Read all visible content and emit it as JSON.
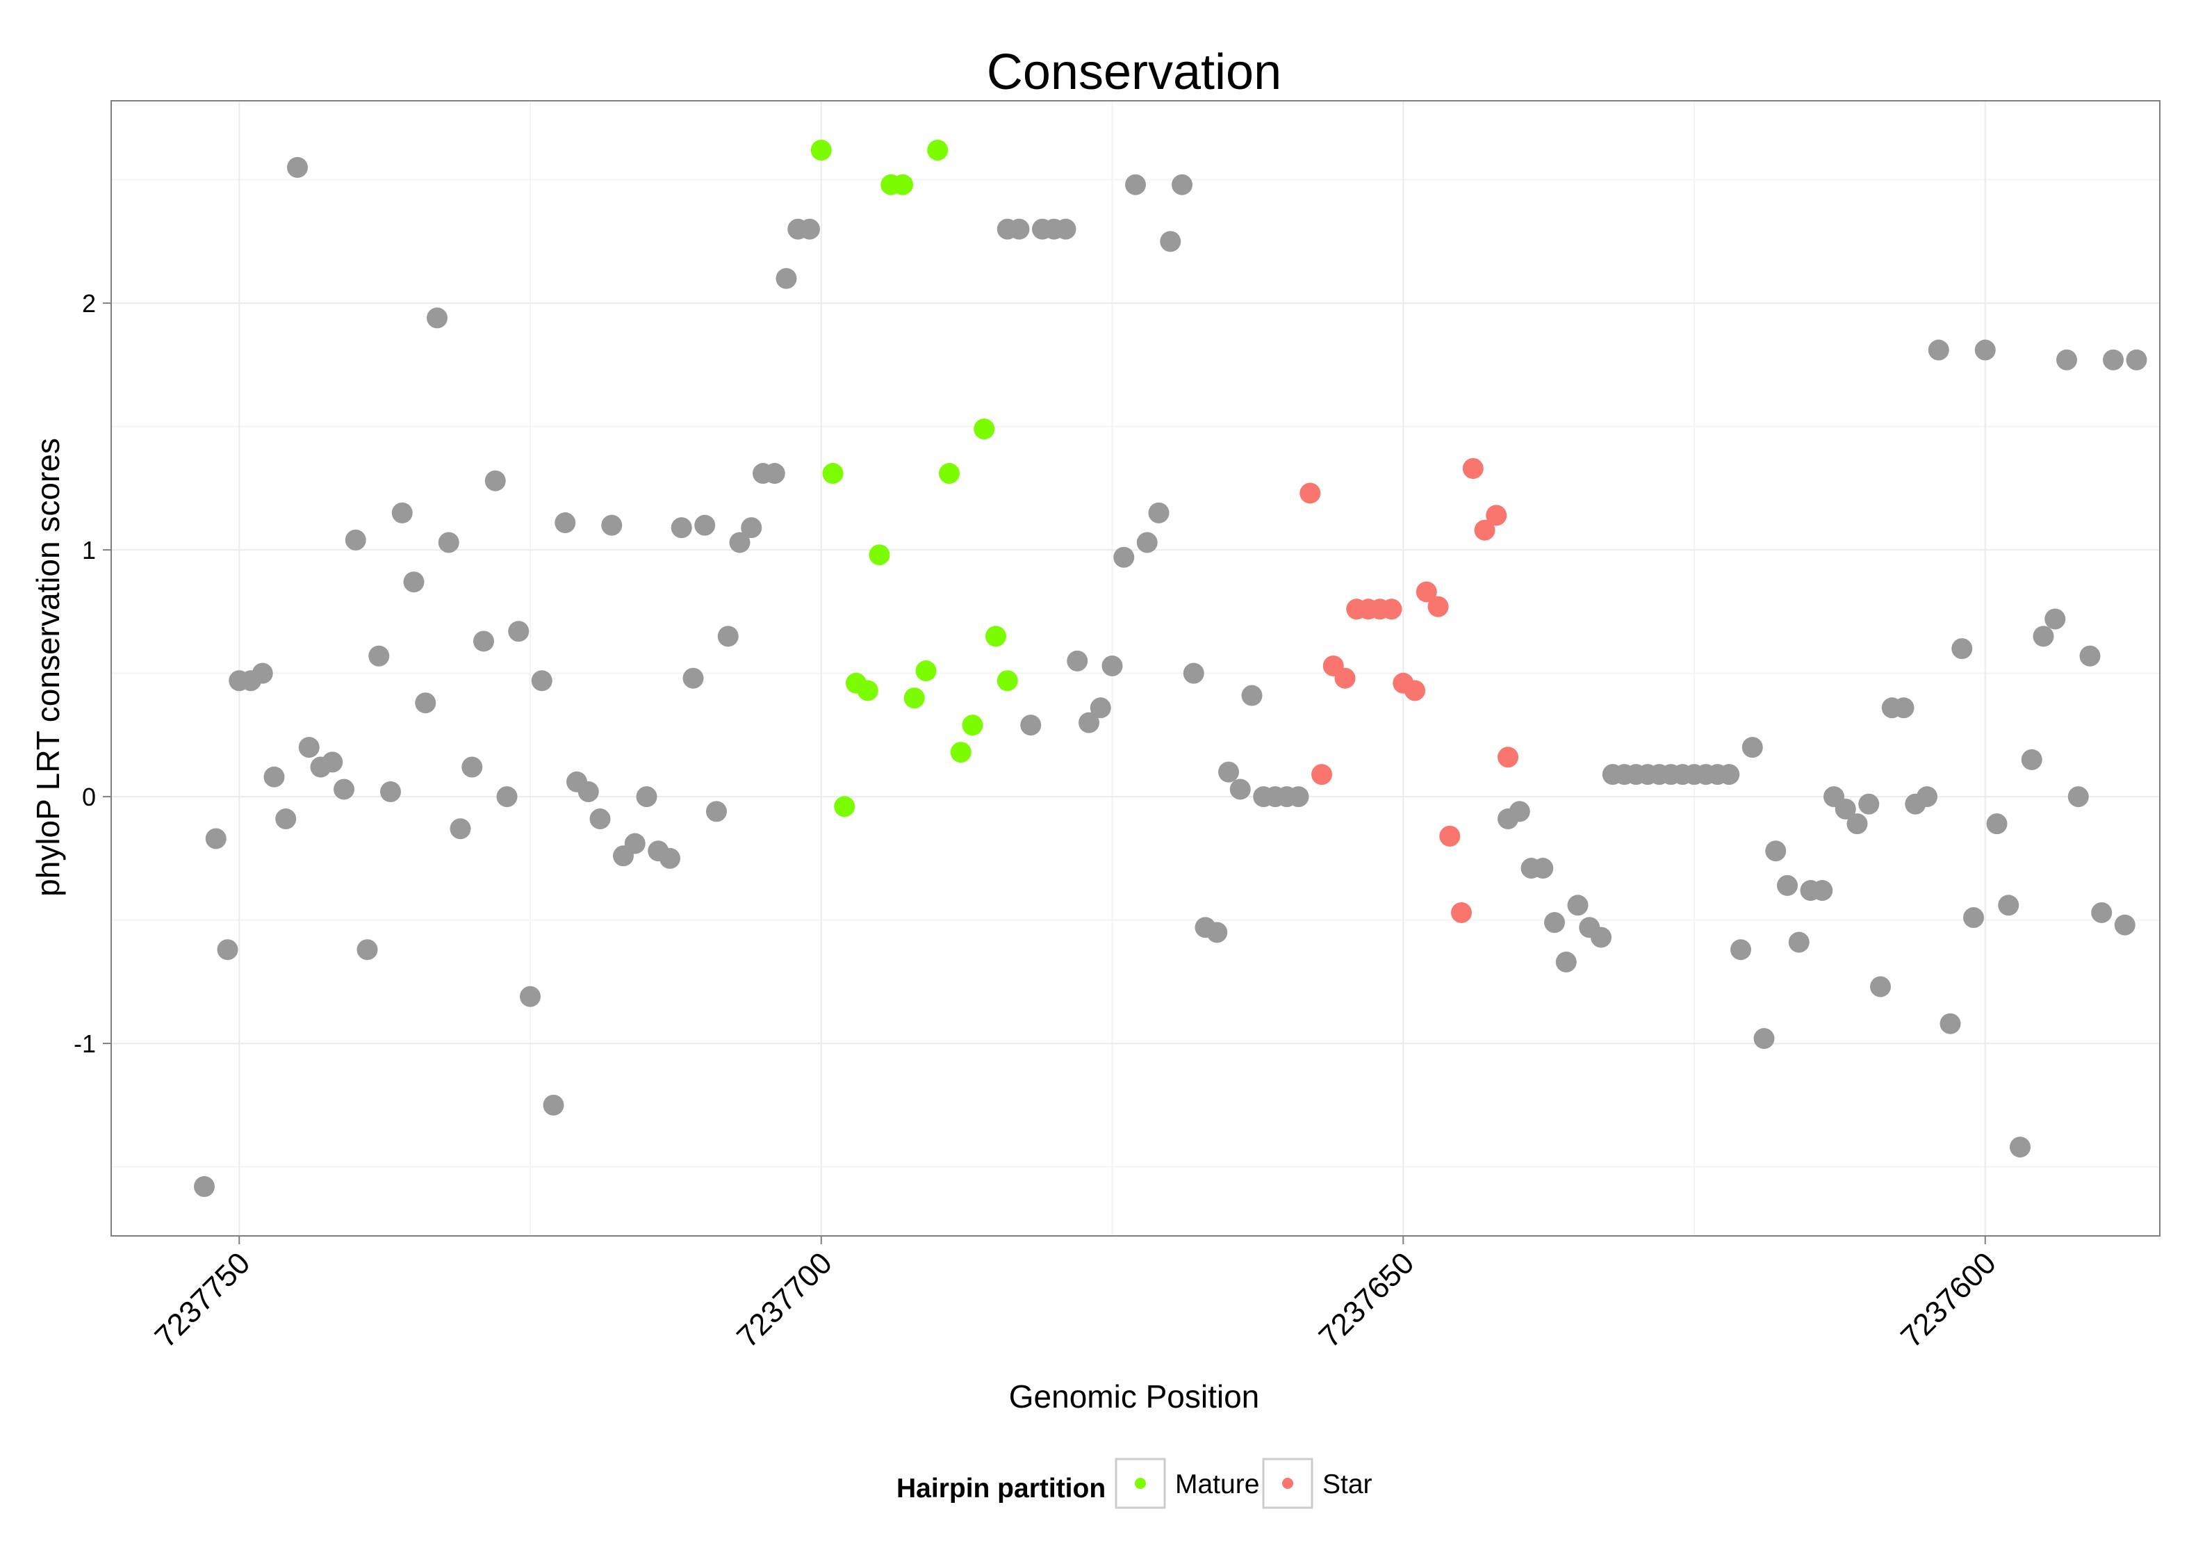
{
  "chart_data": {
    "type": "scatter",
    "title": "Conservation",
    "xlabel": "Genomic Position",
    "ylabel": "phyloP LRT conservation scores",
    "x_reversed": true,
    "xlim": [
      7237585,
      7237761
    ],
    "ylim": [
      -1.78,
      2.82
    ],
    "x_ticks": [
      7237750,
      7237700,
      7237650,
      7237600
    ],
    "x_tick_labels": [
      "7237750",
      "7237700",
      "7237650",
      "7237600"
    ],
    "y_ticks": [
      -1,
      0,
      1,
      2
    ],
    "y_tick_labels": [
      "-1",
      "0",
      "1",
      "2"
    ],
    "grid": true,
    "legend": {
      "title": "Hairpin partition",
      "position": "bottom",
      "entries": [
        {
          "label": "Mature",
          "color": "#7CFC00"
        },
        {
          "label": "Star",
          "color": "#F8766D"
        }
      ]
    },
    "colors": {
      "other": "#999999",
      "Mature": "#7CFC00",
      "Star": "#F8766D"
    },
    "series": [
      {
        "group": "other",
        "x": [
          7237753,
          7237752,
          7237751,
          7237750,
          7237749,
          7237748,
          7237747,
          7237746,
          7237745,
          7237744,
          7237743,
          7237742,
          7237741,
          7237740,
          7237739,
          7237738,
          7237737,
          7237736,
          7237735,
          7237734,
          7237733,
          7237732,
          7237731,
          7237730,
          7237729,
          7237728,
          7237727,
          7237726,
          7237725,
          7237724,
          7237723,
          7237722,
          7237721,
          7237720,
          7237719,
          7237718,
          7237717,
          7237716,
          7237715,
          7237714,
          7237713,
          7237712,
          7237711,
          7237710,
          7237709,
          7237708,
          7237707,
          7237706,
          7237705,
          7237704,
          7237703,
          7237702,
          7237701,
          7237684,
          7237683,
          7237682,
          7237681,
          7237680,
          7237679,
          7237678,
          7237677,
          7237676,
          7237675,
          7237674,
          7237673,
          7237672,
          7237671,
          7237670,
          7237669,
          7237668,
          7237667,
          7237666,
          7237665,
          7237664,
          7237663,
          7237662,
          7237661,
          7237660,
          7237659,
          7237641,
          7237640,
          7237639,
          7237638,
          7237637,
          7237636,
          7237635,
          7237634,
          7237633,
          7237632,
          7237631,
          7237630,
          7237629,
          7237628,
          7237627,
          7237626,
          7237625,
          7237624,
          7237623,
          7237622,
          7237621,
          7237620,
          7237619,
          7237618,
          7237617,
          7237616,
          7237615,
          7237614,
          7237613,
          7237612,
          7237611,
          7237610,
          7237609,
          7237608,
          7237607,
          7237606,
          7237605,
          7237604,
          7237603,
          7237602,
          7237601,
          7237600,
          7237599,
          7237598,
          7237597,
          7237596,
          7237595,
          7237594,
          7237593,
          7237592,
          7237591,
          7237590,
          7237589,
          7237588,
          7237587
        ],
        "y": [
          -1.58,
          -0.17,
          -0.62,
          0.47,
          0.47,
          0.5,
          0.08,
          -0.09,
          2.55,
          0.2,
          0.12,
          0.14,
          0.03,
          1.04,
          -0.62,
          0.57,
          0.02,
          1.15,
          0.87,
          0.38,
          1.94,
          1.03,
          -0.13,
          0.12,
          0.63,
          1.28,
          0.0,
          0.67,
          -0.81,
          0.47,
          -1.25,
          1.11,
          0.06,
          0.02,
          -0.09,
          1.1,
          -0.24,
          -0.19,
          0.0,
          -0.22,
          -0.25,
          1.09,
          0.48,
          1.1,
          -0.06,
          0.65,
          1.03,
          1.09,
          1.31,
          1.31,
          2.1,
          2.3,
          2.3,
          2.3,
          2.3,
          0.29,
          2.3,
          2.3,
          2.3,
          0.55,
          0.3,
          0.36,
          0.53,
          0.97,
          2.48,
          1.03,
          1.15,
          2.25,
          2.48,
          0.5,
          -0.53,
          -0.55,
          0.1,
          0.03,
          0.41,
          0.0,
          0.0,
          0.0,
          0.0,
          -0.09,
          -0.06,
          -0.29,
          -0.29,
          -0.51,
          -0.67,
          -0.44,
          -0.53,
          -0.57,
          0.09,
          0.09,
          0.09,
          0.09,
          0.09,
          0.09,
          0.09,
          0.09,
          0.09,
          0.09,
          0.09,
          -0.62,
          0.2,
          -0.98,
          -0.22,
          -0.36,
          -0.59,
          -0.38,
          -0.38,
          0.0,
          -0.05,
          -0.11,
          -0.03,
          -0.77,
          0.36,
          0.36,
          -0.03,
          0.0,
          1.81,
          -0.92,
          0.6,
          -0.49,
          1.81,
          -0.11,
          -0.44,
          -1.42,
          0.15,
          0.65,
          0.72,
          1.77,
          0.0,
          0.57,
          -0.47,
          1.77,
          -0.52,
          1.77
        ]
      },
      {
        "group": "Mature",
        "name": "Mature",
        "x": [
          7237700,
          7237699,
          7237698,
          7237697,
          7237696,
          7237695,
          7237694,
          7237693,
          7237692,
          7237691,
          7237690,
          7237689,
          7237688,
          7237687,
          7237686,
          7237685,
          7237684
        ],
        "y": [
          2.62,
          1.31,
          -0.04,
          0.46,
          0.43,
          0.98,
          2.48,
          2.48,
          0.4,
          0.51,
          2.62,
          1.31,
          0.18,
          0.29,
          1.49,
          0.65,
          0.47
        ]
      },
      {
        "group": "Star",
        "name": "Star",
        "x": [
          7237658,
          7237657,
          7237656,
          7237655,
          7237654,
          7237653,
          7237652,
          7237651,
          7237650,
          7237649,
          7237648,
          7237647,
          7237646,
          7237645,
          7237644,
          7237643,
          7237642,
          7237641
        ],
        "y": [
          1.23,
          0.09,
          0.53,
          0.48,
          0.76,
          0.76,
          0.76,
          0.76,
          0.46,
          0.43,
          0.83,
          0.77,
          -0.16,
          -0.47,
          1.33,
          1.08,
          1.14,
          0.16
        ]
      }
    ]
  }
}
